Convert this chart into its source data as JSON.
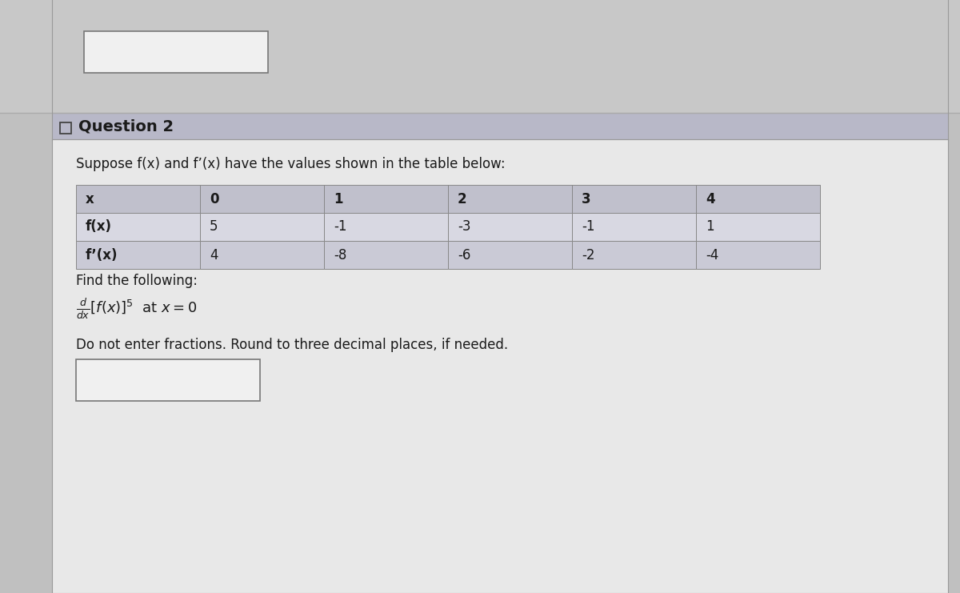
{
  "title": "Question 2",
  "intro_text": "Suppose f(x) and f’(x) have the values shown in the table below:",
  "table_headers": [
    "x",
    "0",
    "1",
    "2",
    "3",
    "4"
  ],
  "table_row1_label": "f(x)",
  "table_row1_values": [
    "5",
    "-1",
    "-3",
    "-1",
    "1"
  ],
  "table_row2_label": "f’(x)",
  "table_row2_values": [
    "4",
    "-8",
    "-6",
    "-2",
    "-4"
  ],
  "find_text": "Find the following:",
  "note_text": "Do not enter fractions. Round to three decimal places, if needed.",
  "page_bg_color": "#c0c0c0",
  "top_section_bg": "#c8c8c8",
  "content_bg": "#e8e8e8",
  "question_bar_color": "#b8b8c8",
  "table_header_row_color": "#c0c0cc",
  "table_row1_color": "#d8d8e2",
  "table_row2_color": "#cacad6",
  "white_box_color": "#f0f0f0",
  "border_color": "#999999",
  "text_color": "#1a1a1a"
}
